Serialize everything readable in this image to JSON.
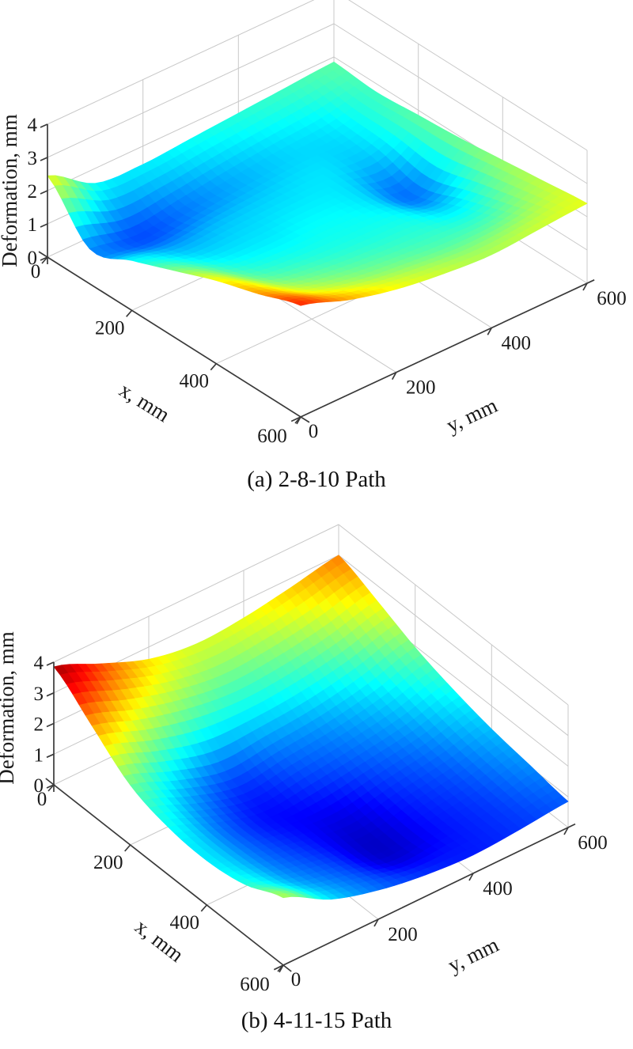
{
  "page": {
    "background": "#ffffff"
  },
  "colors": {
    "grid": "#c8c8c8",
    "axis": "#3a3a3a",
    "text": "#1a1a1a",
    "background": "#ffffff"
  },
  "figure": {
    "panels": [
      {
        "id": "a",
        "caption": "(a) 2-8-10 Path"
      },
      {
        "id": "b",
        "caption": "(b) 4-11-15 Path"
      }
    ]
  },
  "chart_data": [
    {
      "type": "surface",
      "panel": "a",
      "title": "",
      "caption": "(a) 2-8-10 Path",
      "xlabel": "x, mm",
      "ylabel": "y, mm",
      "zlabel": "Deformation, mm",
      "xlim": [
        0,
        600
      ],
      "ylim": [
        0,
        600
      ],
      "zlim": [
        0,
        4
      ],
      "clim": [
        0,
        4
      ],
      "x_ticks": [
        0,
        200,
        400,
        600
      ],
      "y_ticks": [
        0,
        200,
        400,
        600
      ],
      "z_ticks": [
        0,
        1,
        2,
        3,
        4
      ],
      "colormap": "jet",
      "grid_on": true,
      "grid_x": [
        0,
        100,
        200,
        300,
        400,
        500,
        600
      ],
      "grid_y": [
        0,
        100,
        200,
        300,
        400,
        500,
        600
      ],
      "z_mm": [
        [
          2.45,
          1.55,
          1.45,
          1.55,
          1.65,
          1.75,
          1.85
        ],
        [
          1.05,
          0.8,
          1.0,
          1.2,
          1.35,
          1.45,
          1.75
        ],
        [
          1.5,
          1.2,
          1.28,
          1.35,
          1.4,
          1.3,
          1.85
        ],
        [
          2.0,
          1.55,
          1.45,
          1.5,
          1.4,
          0.95,
          1.95
        ],
        [
          2.5,
          1.9,
          1.7,
          1.62,
          1.58,
          1.4,
          2.1
        ],
        [
          2.9,
          2.35,
          2.05,
          1.9,
          1.8,
          1.85,
          2.25
        ],
        [
          3.35,
          2.85,
          2.5,
          2.3,
          2.2,
          2.3,
          2.4
        ]
      ]
    },
    {
      "type": "surface",
      "panel": "b",
      "title": "",
      "caption": "(b) 4-11-15 Path",
      "xlabel": "x, mm",
      "ylabel": "y, mm",
      "zlabel": "Deformation, mm",
      "xlim": [
        0,
        600
      ],
      "ylim": [
        0,
        600
      ],
      "zlim": [
        0,
        4
      ],
      "clim": [
        0,
        4
      ],
      "x_ticks": [
        0,
        200,
        400,
        600
      ],
      "y_ticks": [
        0,
        200,
        400,
        600
      ],
      "z_ticks": [
        0,
        1,
        2,
        3,
        4
      ],
      "colormap": "jet",
      "grid_on": true,
      "grid_x": [
        0,
        100,
        200,
        300,
        400,
        500,
        600
      ],
      "grid_y": [
        0,
        100,
        200,
        300,
        400,
        500,
        600
      ],
      "z_mm": [
        [
          3.85,
          3.2,
          2.6,
          2.35,
          2.45,
          2.7,
          3.0
        ],
        [
          2.9,
          2.35,
          1.95,
          1.75,
          1.85,
          2.1,
          2.5
        ],
        [
          1.95,
          1.35,
          0.9,
          1.05,
          1.2,
          1.5,
          1.95
        ],
        [
          1.55,
          0.95,
          0.55,
          0.7,
          0.9,
          1.15,
          1.55
        ],
        [
          1.45,
          0.95,
          0.6,
          0.35,
          0.65,
          0.9,
          1.25
        ],
        [
          1.65,
          1.1,
          0.75,
          0.3,
          0.55,
          0.75,
          1.05
        ],
        [
          2.2,
          1.4,
          0.95,
          0.7,
          0.6,
          0.7,
          0.85
        ]
      ]
    }
  ]
}
